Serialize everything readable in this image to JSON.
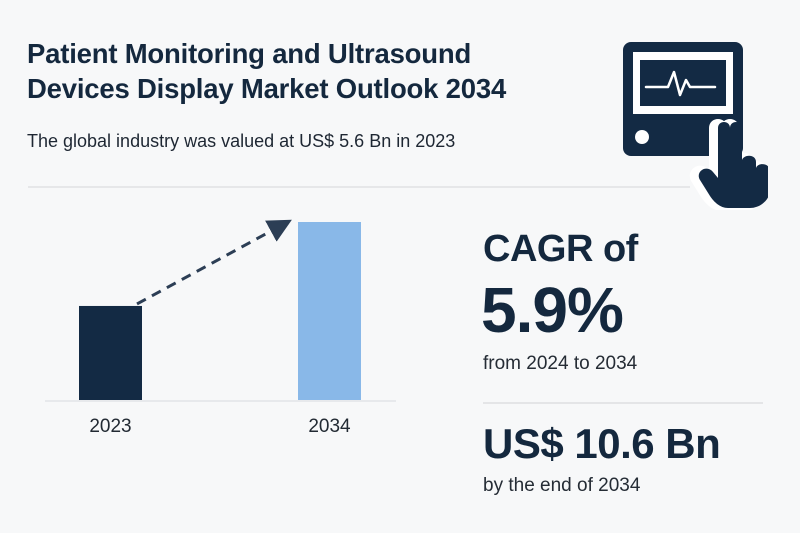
{
  "header": {
    "title_line1": "Patient Monitoring and Ultrasound",
    "title_line2": "Devices Display Market Outlook 2034",
    "subtitle": "The global industry was valued at US$ 5.6 Bn in 2023"
  },
  "icon": {
    "name": "patient-monitor-touch-icon"
  },
  "stats": {
    "cagr_label": "CAGR of",
    "cagr_value": "5.9%",
    "cagr_period": "from 2024 to 2034",
    "market_value": "US$ 10.6 Bn",
    "market_period": "by the end of 2034"
  },
  "colors": {
    "dark_navy": "#132a44",
    "light_blue": "#89b8e8",
    "arrow": "#2c3e55"
  },
  "chart_data": {
    "type": "bar",
    "title": "",
    "xlabel": "",
    "ylabel": "",
    "categories": [
      "2023",
      "2034"
    ],
    "values": [
      5.6,
      10.6
    ],
    "units": "US$ Bn",
    "ylim": [
      0,
      10.6
    ],
    "grid": false,
    "legend": "none",
    "bar_colors": [
      "#132a44",
      "#89b8e8"
    ],
    "annotations": [
      {
        "type": "dashed-arrow",
        "from": "2023",
        "to": "2034"
      }
    ]
  }
}
